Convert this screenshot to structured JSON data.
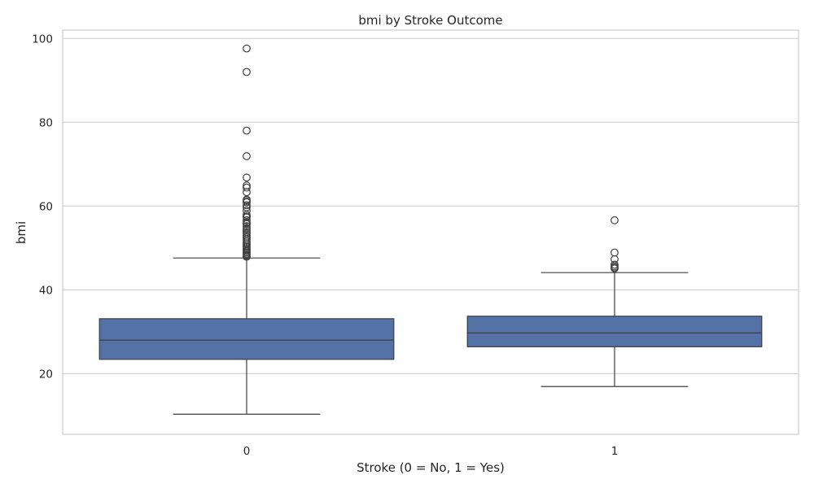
{
  "chart_data": {
    "type": "box",
    "title": "bmi by Stroke Outcome",
    "xlabel": "Stroke (0 = No, 1 = Yes)",
    "ylabel": "bmi",
    "categories": [
      "0",
      "1"
    ],
    "ylim": [
      5.5,
      102
    ],
    "yticks": [
      20,
      40,
      60,
      80,
      100
    ],
    "grid": true,
    "box_color": "#5572a8",
    "line_color": "#3f3f3f",
    "grid_color": "#cccccc",
    "boxes": [
      {
        "category": "0",
        "q1": 23.4,
        "median": 28.0,
        "q3": 33.1,
        "whisker_low": 10.3,
        "whisker_high": 47.6,
        "fliers": [
          97.6,
          92.0,
          78.0,
          71.9,
          66.8,
          64.9,
          64.4,
          63.3,
          61.5,
          61.2,
          60.9,
          60.2,
          59.7,
          58.9,
          57.9,
          57.5,
          57.3,
          56.6,
          56.1,
          55.7,
          55.2,
          54.7,
          54.3,
          53.8,
          53.4,
          52.9,
          52.5,
          52.1,
          51.7,
          51.3,
          50.9,
          50.5,
          50.2,
          49.8,
          49.5,
          49.2,
          48.9,
          48.6,
          48.3,
          48.1,
          47.9
        ]
      },
      {
        "category": "1",
        "q1": 26.4,
        "median": 29.7,
        "q3": 33.7,
        "whisker_low": 16.9,
        "whisker_high": 44.1,
        "fliers": [
          56.6,
          48.9,
          47.3,
          46.0,
          45.6,
          45.3,
          45.1
        ]
      }
    ]
  }
}
